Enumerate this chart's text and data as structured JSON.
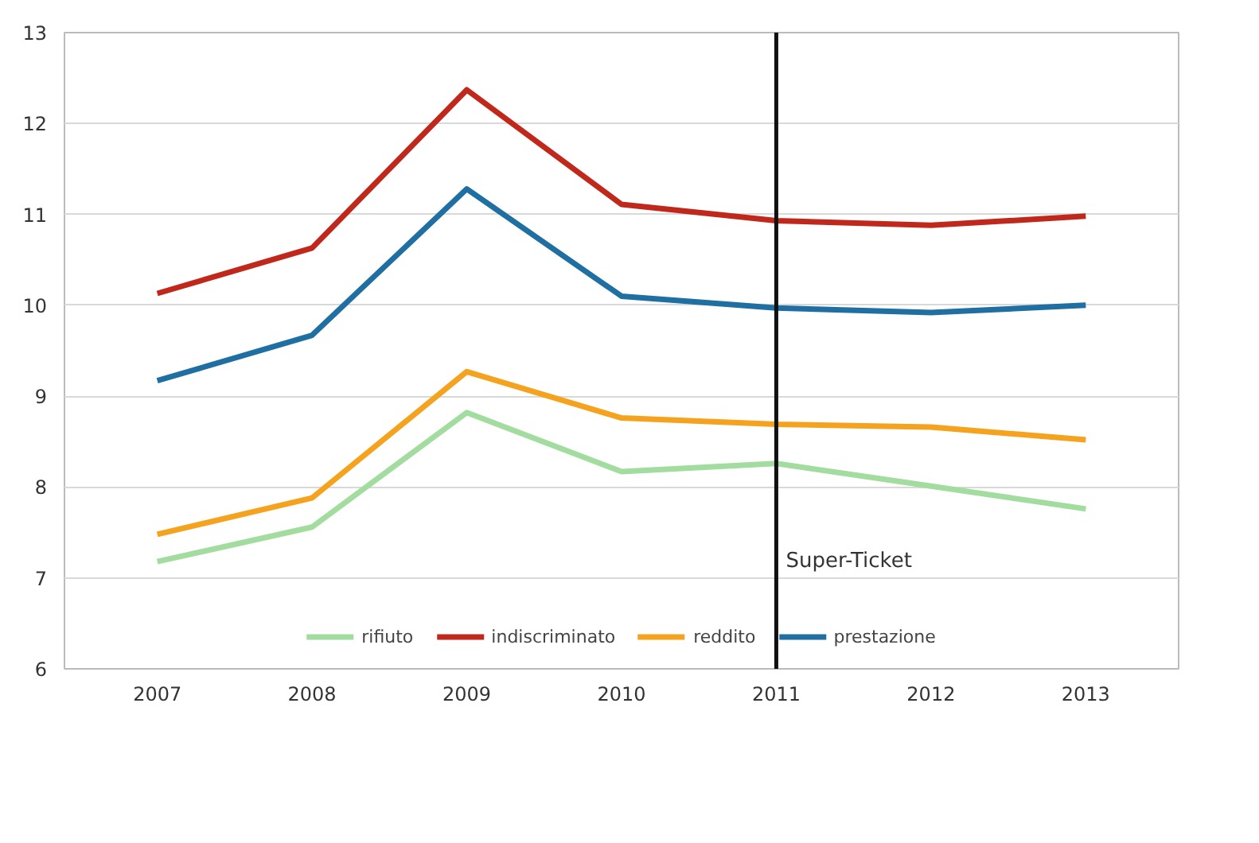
{
  "chart_data": {
    "type": "line",
    "categories": [
      "2007",
      "2008",
      "2009",
      "2010",
      "2011",
      "2012",
      "2013"
    ],
    "series": [
      {
        "name": "rifiuto",
        "color": "#a3dc9f",
        "values": [
          7.18,
          7.56,
          8.82,
          8.17,
          8.26,
          8.01,
          7.76
        ]
      },
      {
        "name": "indiscriminato",
        "color": "#c0281b",
        "values": [
          10.13,
          10.63,
          12.37,
          11.11,
          10.93,
          10.88,
          10.98
        ]
      },
      {
        "name": "reddito",
        "color": "#f5a21f",
        "values": [
          7.48,
          7.88,
          9.27,
          8.76,
          8.69,
          8.66,
          8.52
        ]
      },
      {
        "name": "prestazione",
        "color": "#1f6fa3",
        "values": [
          9.17,
          9.67,
          11.28,
          10.1,
          9.97,
          9.92,
          10.0
        ]
      }
    ],
    "ylim": [
      6,
      13
    ],
    "yticks": [
      6,
      7,
      8,
      9,
      10,
      11,
      12,
      13
    ],
    "grid": "y",
    "legend": "bottom",
    "marker": "none",
    "line_style": "solid",
    "ref_lines": [
      {
        "axis": "x",
        "value": "2011",
        "color": "#111111",
        "line_style": "solid"
      }
    ],
    "annotations": [
      {
        "text": "Super-Ticket",
        "x": "2011",
        "y": 7.05
      }
    ]
  }
}
